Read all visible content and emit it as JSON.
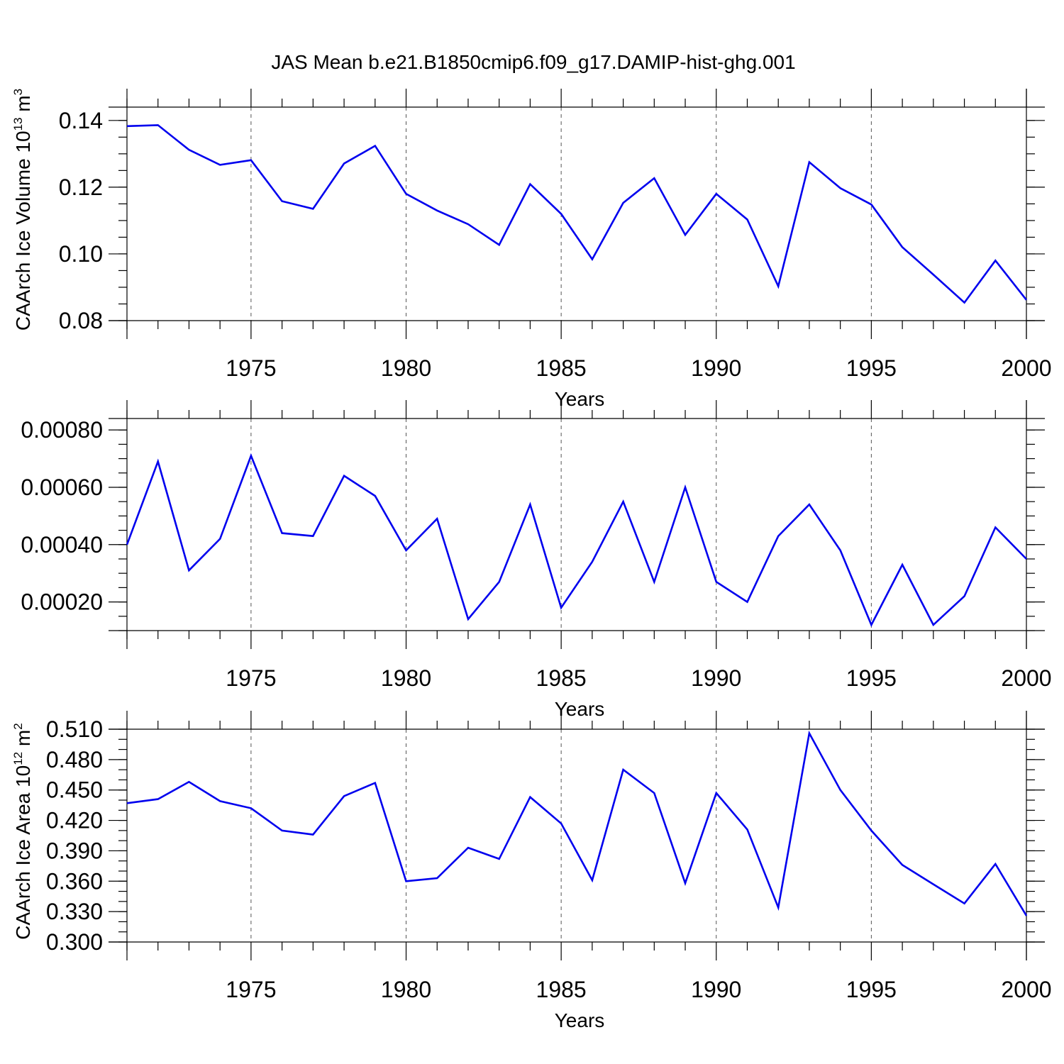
{
  "title": "JAS Mean b.e21.B1850cmip6.f09_g17.DAMIP-hist-ghg.001",
  "chart_data": [
    {
      "type": "line",
      "name": "ice-volume",
      "ylabel": "CAArch Ice Volume 10",
      "ylabel_sup": "13",
      "ylabel_unit": " m",
      "ylabel_unit_sup": "3",
      "xlabel": "Years",
      "xlim": [
        1971,
        2000
      ],
      "ylim": [
        0.08,
        0.144
      ],
      "yticks": [
        0.08,
        0.1,
        0.12,
        0.14
      ],
      "ytick_labels": [
        "0.08",
        "0.10",
        "0.12",
        "0.14"
      ],
      "yminor_step": 0.005,
      "xticks": [
        1975,
        1980,
        1985,
        1990,
        1995,
        2000
      ],
      "xtick_labels": [
        "1975",
        "1980",
        "1985",
        "1990",
        "1995",
        "2000"
      ],
      "x": [
        1971,
        1972,
        1973,
        1974,
        1975,
        1976,
        1977,
        1978,
        1979,
        1980,
        1981,
        1982,
        1983,
        1984,
        1985,
        1986,
        1987,
        1988,
        1989,
        1990,
        1991,
        1992,
        1993,
        1994,
        1995,
        1996,
        1997,
        1998,
        1999,
        2000
      ],
      "values": [
        0.1383,
        0.1386,
        0.1312,
        0.1267,
        0.1281,
        0.1158,
        0.1135,
        0.1271,
        0.1324,
        0.118,
        0.113,
        0.1089,
        0.1027,
        0.1209,
        0.112,
        0.0984,
        0.1153,
        0.1227,
        0.1057,
        0.118,
        0.1103,
        0.0903,
        0.1275,
        0.1197,
        0.1148,
        0.102,
        0.0938,
        0.0854,
        0.098,
        0.0862
      ]
    },
    {
      "type": "line",
      "name": "secondary-series",
      "ylabel": "",
      "xlabel": "Years",
      "xlim": [
        1971,
        2000
      ],
      "ylim": [
        0.0001,
        0.00084
      ],
      "yticks": [
        0.0002,
        0.0004,
        0.0006,
        0.0008
      ],
      "ytick_labels": [
        "0.00020",
        "0.00040",
        "0.00060",
        "0.00080"
      ],
      "yminor_step": 5e-05,
      "xticks": [
        1975,
        1980,
        1985,
        1990,
        1995,
        2000
      ],
      "xtick_labels": [
        "1975",
        "1980",
        "1985",
        "1990",
        "1995",
        "2000"
      ],
      "x": [
        1971,
        1972,
        1973,
        1974,
        1975,
        1976,
        1977,
        1978,
        1979,
        1980,
        1981,
        1982,
        1983,
        1984,
        1985,
        1986,
        1987,
        1988,
        1989,
        1990,
        1991,
        1992,
        1993,
        1994,
        1995,
        1996,
        1997,
        1998,
        1999,
        2000
      ],
      "values": [
        0.0004,
        0.00069,
        0.00031,
        0.00042,
        0.00071,
        0.00044,
        0.00043,
        0.00064,
        0.00057,
        0.00038,
        0.00049,
        0.00014,
        0.00027,
        0.00054,
        0.00018,
        0.00034,
        0.00055,
        0.00027,
        0.0006,
        0.00027,
        0.0002,
        0.00043,
        0.00054,
        0.00038,
        0.00012,
        0.00033,
        0.00012,
        0.00022,
        0.00046,
        0.00035
      ]
    },
    {
      "type": "line",
      "name": "ice-area",
      "ylabel": "CAArch Ice Area 10",
      "ylabel_sup": "12",
      "ylabel_unit": " m",
      "ylabel_unit_sup": "2",
      "xlabel": "Years",
      "xlim": [
        1971,
        2000
      ],
      "ylim": [
        0.3,
        0.51
      ],
      "yticks": [
        0.3,
        0.33,
        0.36,
        0.39,
        0.42,
        0.45,
        0.48,
        0.51
      ],
      "ytick_labels": [
        "0.300",
        "0.330",
        "0.360",
        "0.390",
        "0.420",
        "0.450",
        "0.480",
        "0.510"
      ],
      "yminor_step": 0.01,
      "xticks": [
        1975,
        1980,
        1985,
        1990,
        1995,
        2000
      ],
      "xtick_labels": [
        "1975",
        "1980",
        "1985",
        "1990",
        "1995",
        "2000"
      ],
      "x": [
        1971,
        1972,
        1973,
        1974,
        1975,
        1976,
        1977,
        1978,
        1979,
        1980,
        1981,
        1982,
        1983,
        1984,
        1985,
        1986,
        1987,
        1988,
        1989,
        1990,
        1991,
        1992,
        1993,
        1994,
        1995,
        1996,
        1997,
        1998,
        1999,
        2000
      ],
      "values": [
        0.437,
        0.441,
        0.458,
        0.439,
        0.432,
        0.41,
        0.406,
        0.444,
        0.457,
        0.36,
        0.363,
        0.393,
        0.382,
        0.443,
        0.417,
        0.361,
        0.47,
        0.447,
        0.358,
        0.447,
        0.411,
        0.334,
        0.506,
        0.45,
        0.41,
        0.376,
        0.357,
        0.338,
        0.377,
        0.326
      ]
    }
  ]
}
